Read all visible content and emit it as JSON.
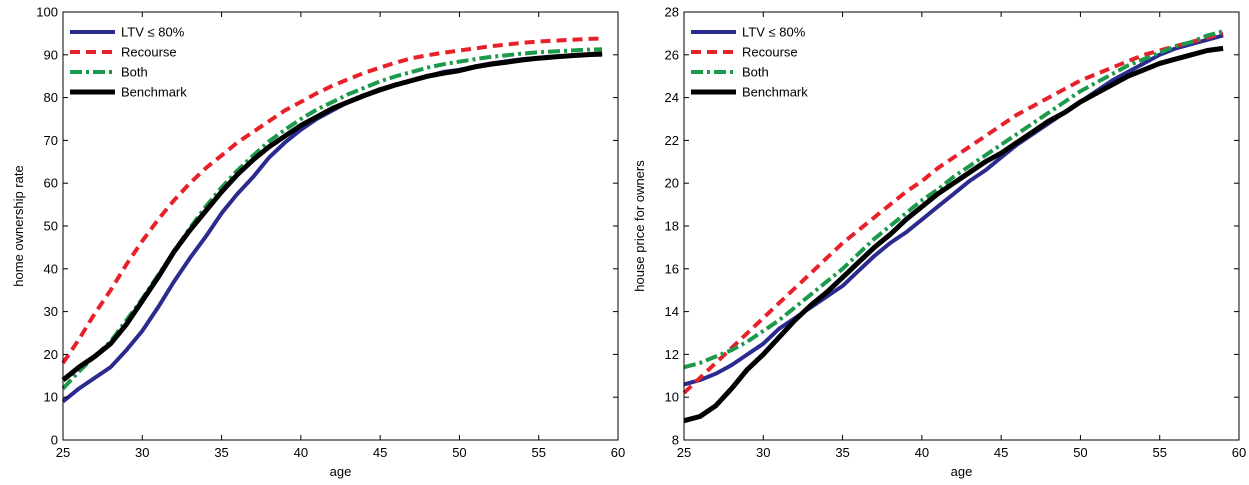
{
  "chart_data": [
    {
      "type": "line",
      "xlabel": "age",
      "ylabel": "home ownership rate",
      "xlim": [
        25,
        60
      ],
      "ylim": [
        0,
        100
      ],
      "xticks": [
        25,
        30,
        35,
        40,
        45,
        50,
        55,
        60
      ],
      "yticks": [
        0,
        10,
        20,
        30,
        40,
        50,
        60,
        70,
        80,
        90,
        100
      ],
      "grid": false,
      "legend_position": "top-left",
      "x": [
        25,
        26,
        27,
        28,
        29,
        30,
        31,
        32,
        33,
        34,
        35,
        36,
        37,
        38,
        39,
        40,
        41,
        42,
        43,
        44,
        45,
        46,
        47,
        48,
        49,
        50,
        51,
        52,
        53,
        54,
        55,
        56,
        57,
        58,
        59
      ],
      "series": [
        {
          "name": "LTV ≤ 80%",
          "color": "#2b2b8f",
          "dash": "solid",
          "values": [
            9,
            12,
            14.5,
            17,
            21,
            25.5,
            31,
            37,
            42.5,
            47.5,
            53,
            57.5,
            61.5,
            66,
            69.5,
            72.5,
            75,
            77,
            79,
            80.5,
            82,
            83,
            84,
            85,
            86,
            86.5,
            87.3,
            88,
            88.5,
            89,
            89.3,
            89.6,
            89.8,
            90,
            90
          ]
        },
        {
          "name": "Recourse",
          "color": "#e8202a",
          "dash": "dashed",
          "values": [
            18,
            23.5,
            29.5,
            35,
            41,
            46.5,
            51.5,
            56,
            60,
            63.5,
            66.5,
            69.5,
            72,
            74.5,
            77,
            79,
            81,
            82.8,
            84.3,
            85.8,
            87,
            88.2,
            89.2,
            89.9,
            90.5,
            91,
            91.5,
            92,
            92.4,
            92.8,
            93.1,
            93.3,
            93.5,
            93.7,
            93.8
          ]
        },
        {
          "name": "Both",
          "color": "#1a9a4a",
          "dash": "dashdot",
          "values": [
            12,
            16,
            19.5,
            23,
            28,
            33,
            38.5,
            44,
            49.5,
            54.5,
            59,
            63,
            66.5,
            69.8,
            72.5,
            75,
            77.2,
            79,
            80.8,
            82.3,
            83.8,
            85,
            86,
            87,
            87.8,
            88.4,
            89,
            89.5,
            89.9,
            90.3,
            90.6,
            90.8,
            91,
            91.2,
            91.3
          ]
        },
        {
          "name": "Benchmark",
          "color": "#000000",
          "dash": "solid",
          "values": [
            14,
            17,
            19.5,
            22.5,
            27,
            32.5,
            38,
            44,
            49,
            53.5,
            58,
            62,
            65.5,
            68.5,
            71,
            73.5,
            75.5,
            77.5,
            79,
            80.5,
            81.8,
            83,
            84,
            85,
            85.7,
            86.3,
            87.2,
            87.8,
            88.3,
            88.8,
            89.2,
            89.5,
            89.8,
            90,
            90.2
          ]
        }
      ]
    },
    {
      "type": "line",
      "xlabel": "age",
      "ylabel": "house price for owners",
      "xlim": [
        25,
        60
      ],
      "ylim": [
        8,
        28
      ],
      "xticks": [
        25,
        30,
        35,
        40,
        45,
        50,
        55,
        60
      ],
      "yticks": [
        8,
        10,
        12,
        14,
        16,
        18,
        20,
        22,
        24,
        26,
        28
      ],
      "grid": false,
      "legend_position": "top-left",
      "x": [
        25,
        26,
        27,
        28,
        29,
        30,
        31,
        32,
        33,
        34,
        35,
        36,
        37,
        38,
        39,
        40,
        41,
        42,
        43,
        44,
        45,
        46,
        47,
        48,
        49,
        50,
        51,
        52,
        53,
        54,
        55,
        56,
        57,
        58,
        59
      ],
      "series": [
        {
          "name": "LTV ≤ 80%",
          "color": "#2b2b8f",
          "dash": "solid",
          "values": [
            10.6,
            10.8,
            11.1,
            11.5,
            12,
            12.5,
            13.2,
            13.7,
            14.2,
            14.7,
            15.2,
            15.9,
            16.6,
            17.2,
            17.7,
            18.3,
            18.9,
            19.5,
            20.1,
            20.6,
            21.2,
            21.8,
            22.3,
            22.8,
            23.3,
            23.8,
            24.3,
            24.8,
            25.2,
            25.6,
            26,
            26.3,
            26.5,
            26.7,
            26.9
          ]
        },
        {
          "name": "Recourse",
          "color": "#e8202a",
          "dash": "dashed",
          "values": [
            10.2,
            10.9,
            11.6,
            12.3,
            13,
            13.7,
            14.4,
            15.1,
            15.8,
            16.5,
            17.2,
            17.8,
            18.4,
            19,
            19.6,
            20.1,
            20.7,
            21.2,
            21.7,
            22.2,
            22.7,
            23.2,
            23.6,
            24,
            24.4,
            24.8,
            25.1,
            25.4,
            25.7,
            26,
            26.2,
            26.4,
            26.6,
            26.8,
            27
          ]
        },
        {
          "name": "Both",
          "color": "#1a9a4a",
          "dash": "dashdot",
          "values": [
            11.4,
            11.6,
            11.9,
            12.2,
            12.6,
            13.1,
            13.6,
            14.2,
            14.8,
            15.4,
            16,
            16.7,
            17.4,
            18,
            18.6,
            19.2,
            19.7,
            20.3,
            20.8,
            21.3,
            21.8,
            22.3,
            22.8,
            23.3,
            23.8,
            24.3,
            24.7,
            25.1,
            25.5,
            25.8,
            26.1,
            26.4,
            26.6,
            26.9,
            27.1
          ]
        },
        {
          "name": "Benchmark",
          "color": "#000000",
          "dash": "solid",
          "values": [
            8.9,
            9.1,
            9.6,
            10.4,
            11.3,
            12,
            12.8,
            13.6,
            14.3,
            14.9,
            15.6,
            16.3,
            17,
            17.6,
            18.3,
            18.9,
            19.5,
            20,
            20.5,
            21,
            21.4,
            21.9,
            22.4,
            22.9,
            23.3,
            23.8,
            24.2,
            24.6,
            25,
            25.3,
            25.6,
            25.8,
            26,
            26.2,
            26.3
          ]
        }
      ]
    }
  ]
}
